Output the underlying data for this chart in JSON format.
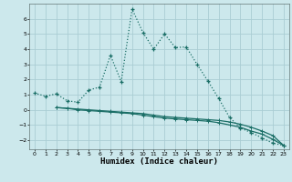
{
  "xlabel": "Humidex (Indice chaleur)",
  "background_color": "#cce8ec",
  "grid_color": "#aacdd4",
  "line_color": "#1a6e66",
  "xlim": [
    -0.5,
    23.5
  ],
  "ylim": [
    -2.6,
    7.0
  ],
  "yticks": [
    -2,
    -1,
    0,
    1,
    2,
    3,
    4,
    5,
    6
  ],
  "xticks": [
    0,
    1,
    2,
    3,
    4,
    5,
    6,
    7,
    8,
    9,
    10,
    11,
    12,
    13,
    14,
    15,
    16,
    17,
    18,
    19,
    20,
    21,
    22,
    23
  ],
  "line1_x": [
    0,
    1,
    2,
    3,
    4,
    5,
    6,
    7,
    8,
    9,
    10,
    11,
    12,
    13,
    14,
    15,
    16,
    17,
    18,
    19,
    20,
    21,
    22,
    23
  ],
  "line1_y": [
    1.1,
    0.9,
    1.05,
    0.6,
    0.5,
    1.3,
    1.5,
    3.6,
    1.85,
    6.65,
    5.1,
    4.0,
    5.0,
    4.1,
    4.15,
    3.0,
    1.9,
    0.75,
    -0.5,
    -1.2,
    -1.5,
    -1.85,
    -2.2,
    -2.35
  ],
  "line2_x": [
    2,
    3,
    4,
    5,
    6,
    7,
    8,
    9,
    10,
    11,
    12,
    13,
    14,
    15,
    16,
    17,
    18,
    19,
    20,
    21,
    22,
    23
  ],
  "line2_y": [
    0.15,
    0.1,
    0.05,
    0.0,
    -0.05,
    -0.1,
    -0.15,
    -0.2,
    -0.25,
    -0.35,
    -0.45,
    -0.5,
    -0.55,
    -0.6,
    -0.65,
    -0.7,
    -0.8,
    -0.95,
    -1.15,
    -1.4,
    -1.7,
    -2.35
  ],
  "line3_x": [
    2,
    3,
    4,
    5,
    6,
    7,
    8,
    9,
    10,
    11,
    12,
    13,
    14,
    15,
    16,
    17,
    18,
    19,
    20,
    21,
    22,
    23
  ],
  "line3_y": [
    0.15,
    0.1,
    0.0,
    -0.05,
    -0.1,
    -0.15,
    -0.2,
    -0.25,
    -0.35,
    -0.45,
    -0.55,
    -0.6,
    -0.65,
    -0.7,
    -0.75,
    -0.85,
    -1.0,
    -1.15,
    -1.4,
    -1.6,
    -1.95,
    -2.35
  ]
}
